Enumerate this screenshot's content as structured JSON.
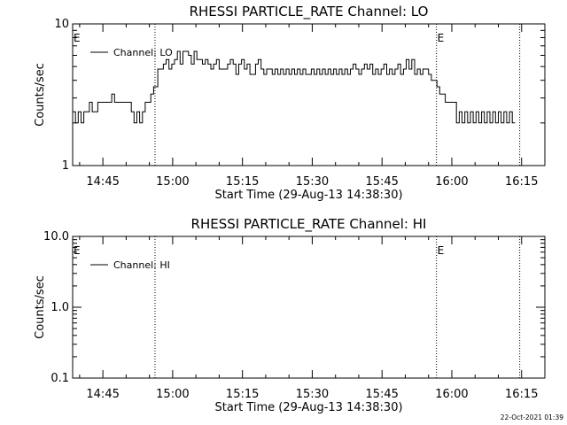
{
  "footer": {
    "timestamp": "22-Oct-2021 01:39"
  },
  "chart_data": [
    {
      "type": "line",
      "title": "RHESSI PARTICLE_RATE Channel: LO",
      "xlabel": "Start Time (29-Aug-13 14:38:30)",
      "ylabel": "Counts/sec",
      "yscale": "log",
      "ylim": [
        1,
        10
      ],
      "yticks": [
        1,
        10
      ],
      "ytick_labels": [
        "1",
        "10"
      ],
      "x_unit": "minutes after 14:38:30",
      "xlim": [
        0,
        101.5
      ],
      "xticks": [
        6.5,
        21.5,
        36.5,
        51.5,
        66.5,
        81.5,
        96.5
      ],
      "xtick_labels": [
        "14:45",
        "15:00",
        "15:15",
        "15:30",
        "15:45",
        "16:00",
        "16:15"
      ],
      "vlines": [
        17.7,
        78.2,
        96.1
      ],
      "markers": [
        {
          "label": "E",
          "x": 0
        },
        {
          "label": "E",
          "x": 78.2
        }
      ],
      "legend": {
        "position": "top-left",
        "entries": [
          "Channel: LO"
        ]
      },
      "series": [
        {
          "name": "Channel: LO",
          "points": [
            [
              0.0,
              2.4
            ],
            [
              0.6,
              2.0
            ],
            [
              1.2,
              2.4
            ],
            [
              1.8,
              2.0
            ],
            [
              2.4,
              2.4
            ],
            [
              3.0,
              2.4
            ],
            [
              3.6,
              2.8
            ],
            [
              4.2,
              2.4
            ],
            [
              4.8,
              2.4
            ],
            [
              5.4,
              2.8
            ],
            [
              6.0,
              2.8
            ],
            [
              6.6,
              2.8
            ],
            [
              7.2,
              2.8
            ],
            [
              7.8,
              2.8
            ],
            [
              8.4,
              3.2
            ],
            [
              9.0,
              2.8
            ],
            [
              9.6,
              2.8
            ],
            [
              10.2,
              2.8
            ],
            [
              10.8,
              2.8
            ],
            [
              11.4,
              2.8
            ],
            [
              12.0,
              2.8
            ],
            [
              12.6,
              2.4
            ],
            [
              13.2,
              2.0
            ],
            [
              13.8,
              2.4
            ],
            [
              14.4,
              2.0
            ],
            [
              15.0,
              2.4
            ],
            [
              15.6,
              2.8
            ],
            [
              16.2,
              2.8
            ],
            [
              16.8,
              3.2
            ],
            [
              17.4,
              3.6
            ],
            [
              17.7,
              3.6
            ],
            [
              18.3,
              4.8
            ],
            [
              18.9,
              4.8
            ],
            [
              19.5,
              5.2
            ],
            [
              20.1,
              5.6
            ],
            [
              20.7,
              4.8
            ],
            [
              21.3,
              5.2
            ],
            [
              21.9,
              5.6
            ],
            [
              22.5,
              6.4
            ],
            [
              23.1,
              5.2
            ],
            [
              23.7,
              6.4
            ],
            [
              24.3,
              6.4
            ],
            [
              24.9,
              6.0
            ],
            [
              25.5,
              5.2
            ],
            [
              26.1,
              6.4
            ],
            [
              26.7,
              5.6
            ],
            [
              27.3,
              5.6
            ],
            [
              27.9,
              5.2
            ],
            [
              28.5,
              5.6
            ],
            [
              29.1,
              5.2
            ],
            [
              29.7,
              4.8
            ],
            [
              30.3,
              5.2
            ],
            [
              30.9,
              5.6
            ],
            [
              31.5,
              4.8
            ],
            [
              32.1,
              4.8
            ],
            [
              32.7,
              4.8
            ],
            [
              33.3,
              5.2
            ],
            [
              33.9,
              5.6
            ],
            [
              34.5,
              5.2
            ],
            [
              35.1,
              4.4
            ],
            [
              35.7,
              5.2
            ],
            [
              36.3,
              5.6
            ],
            [
              36.9,
              4.8
            ],
            [
              37.5,
              5.2
            ],
            [
              38.1,
              4.4
            ],
            [
              38.7,
              4.4
            ],
            [
              39.3,
              5.2
            ],
            [
              39.9,
              5.6
            ],
            [
              40.5,
              4.8
            ],
            [
              41.1,
              4.4
            ],
            [
              41.7,
              4.8
            ],
            [
              42.3,
              4.8
            ],
            [
              42.9,
              4.4
            ],
            [
              43.5,
              4.8
            ],
            [
              44.1,
              4.4
            ],
            [
              44.7,
              4.8
            ],
            [
              45.3,
              4.4
            ],
            [
              45.9,
              4.8
            ],
            [
              46.5,
              4.4
            ],
            [
              47.1,
              4.8
            ],
            [
              47.7,
              4.4
            ],
            [
              48.3,
              4.8
            ],
            [
              48.9,
              4.4
            ],
            [
              49.5,
              4.8
            ],
            [
              50.1,
              4.4
            ],
            [
              50.7,
              4.4
            ],
            [
              51.3,
              4.8
            ],
            [
              51.9,
              4.4
            ],
            [
              52.5,
              4.8
            ],
            [
              53.1,
              4.4
            ],
            [
              53.7,
              4.8
            ],
            [
              54.3,
              4.4
            ],
            [
              54.9,
              4.8
            ],
            [
              55.5,
              4.4
            ],
            [
              56.1,
              4.8
            ],
            [
              56.7,
              4.4
            ],
            [
              57.3,
              4.8
            ],
            [
              57.9,
              4.4
            ],
            [
              58.5,
              4.8
            ],
            [
              59.1,
              4.4
            ],
            [
              59.7,
              4.8
            ],
            [
              60.3,
              5.2
            ],
            [
              60.9,
              4.8
            ],
            [
              61.5,
              4.4
            ],
            [
              62.1,
              4.8
            ],
            [
              62.7,
              5.2
            ],
            [
              63.3,
              4.8
            ],
            [
              63.9,
              5.2
            ],
            [
              64.5,
              4.4
            ],
            [
              65.1,
              4.8
            ],
            [
              65.7,
              4.4
            ],
            [
              66.3,
              4.8
            ],
            [
              66.9,
              5.2
            ],
            [
              67.5,
              4.4
            ],
            [
              68.1,
              4.8
            ],
            [
              68.7,
              4.4
            ],
            [
              69.3,
              4.8
            ],
            [
              69.9,
              5.2
            ],
            [
              70.5,
              4.4
            ],
            [
              71.1,
              4.8
            ],
            [
              71.7,
              5.6
            ],
            [
              72.3,
              4.8
            ],
            [
              72.9,
              5.6
            ],
            [
              73.5,
              4.4
            ],
            [
              74.1,
              4.8
            ],
            [
              74.7,
              4.4
            ],
            [
              75.3,
              4.8
            ],
            [
              75.9,
              4.8
            ],
            [
              76.5,
              4.4
            ],
            [
              77.1,
              4.0
            ],
            [
              77.7,
              4.0
            ],
            [
              78.3,
              3.6
            ],
            [
              78.9,
              3.2
            ],
            [
              79.5,
              3.2
            ],
            [
              80.1,
              2.8
            ],
            [
              80.7,
              2.8
            ],
            [
              81.3,
              2.8
            ],
            [
              81.9,
              2.8
            ],
            [
              82.5,
              2.0
            ],
            [
              83.1,
              2.4
            ],
            [
              83.7,
              2.0
            ],
            [
              84.3,
              2.4
            ],
            [
              84.9,
              2.0
            ],
            [
              85.5,
              2.4
            ],
            [
              86.1,
              2.0
            ],
            [
              86.7,
              2.4
            ],
            [
              87.3,
              2.0
            ],
            [
              87.9,
              2.4
            ],
            [
              88.5,
              2.0
            ],
            [
              89.1,
              2.4
            ],
            [
              89.7,
              2.0
            ],
            [
              90.3,
              2.4
            ],
            [
              90.9,
              2.0
            ],
            [
              91.5,
              2.4
            ],
            [
              92.1,
              2.0
            ],
            [
              92.7,
              2.4
            ],
            [
              93.3,
              2.0
            ],
            [
              93.9,
              2.4
            ],
            [
              94.5,
              2.0
            ],
            [
              95.1,
              2.0
            ]
          ]
        }
      ]
    },
    {
      "type": "line",
      "title": "RHESSI PARTICLE_RATE Channel: HI",
      "xlabel": "Start Time (29-Aug-13 14:38:30)",
      "ylabel": "Counts/sec",
      "yscale": "log",
      "ylim": [
        0.1,
        10
      ],
      "yticks": [
        0.1,
        1,
        10
      ],
      "ytick_labels": [
        "0.1",
        "1.0",
        "10.0"
      ],
      "x_unit": "minutes after 14:38:30",
      "xlim": [
        0,
        101.5
      ],
      "xticks": [
        6.5,
        21.5,
        36.5,
        51.5,
        66.5,
        81.5,
        96.5
      ],
      "xtick_labels": [
        "14:45",
        "15:00",
        "15:15",
        "15:30",
        "15:45",
        "16:00",
        "16:15"
      ],
      "vlines": [
        17.7,
        78.2,
        96.1
      ],
      "markers": [
        {
          "label": "E",
          "x": 0
        },
        {
          "label": "E",
          "x": 78.2
        }
      ],
      "legend": {
        "position": "top-left",
        "entries": [
          "Channel: HI"
        ]
      },
      "series": [
        {
          "name": "Channel: HI",
          "points": []
        }
      ]
    }
  ]
}
